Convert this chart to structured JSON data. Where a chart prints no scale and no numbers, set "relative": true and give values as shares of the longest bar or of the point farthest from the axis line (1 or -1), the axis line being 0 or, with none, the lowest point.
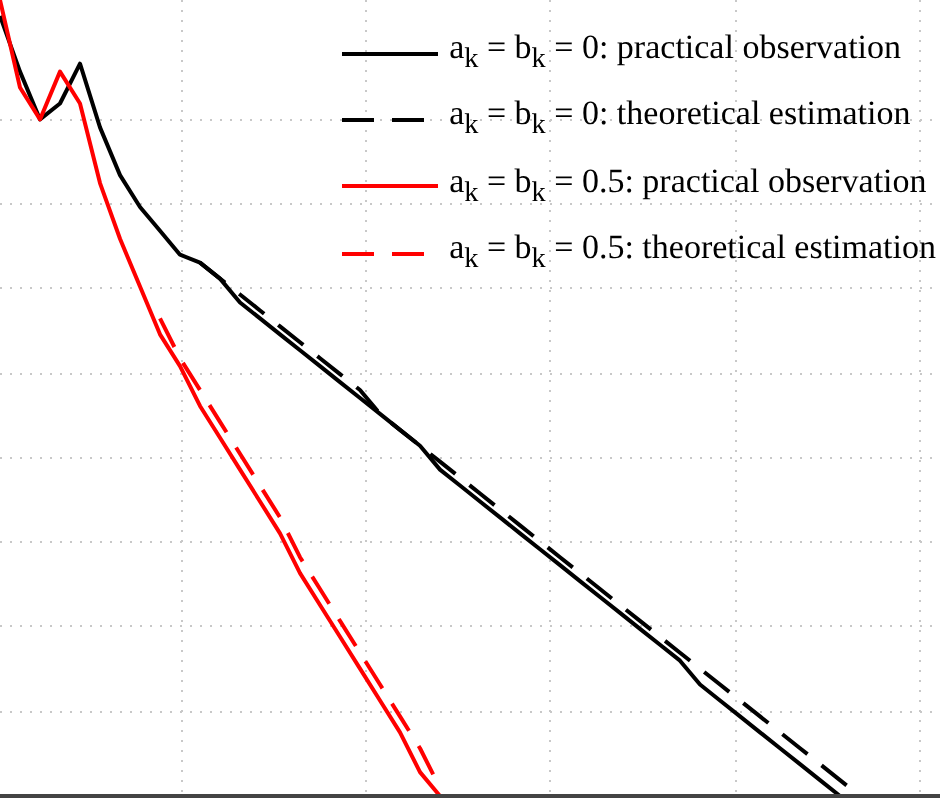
{
  "chart_data": {
    "type": "line",
    "relative": true,
    "grid": true,
    "legend": "top right",
    "marker": "none",
    "categories": [
      null,
      null,
      null,
      null,
      null,
      null,
      null,
      null,
      null,
      null,
      null,
      null,
      null,
      null,
      null,
      null,
      null,
      null,
      null,
      null,
      null,
      null,
      null,
      null,
      null,
      null,
      null,
      null,
      null,
      null,
      null,
      null,
      null,
      null,
      null,
      null,
      null,
      null,
      null,
      null,
      null,
      null,
      null,
      null,
      null,
      null,
      null,
      null
    ],
    "series": [
      {
        "name": "a$_{k}$ = b$_{k}$ = 0: practical observation",
        "color": "#000000",
        "line_style": "solid",
        "values": [
          0.98,
          0.91,
          0.85,
          0.87,
          0.92,
          0.84,
          0.78,
          0.74,
          0.71,
          0.68,
          0.67,
          0.65,
          0.62,
          0.6,
          0.58,
          0.56,
          0.54,
          0.52,
          0.5,
          0.48,
          0.46,
          0.44,
          0.41,
          0.39,
          0.37,
          0.35,
          0.33,
          0.31,
          0.29,
          0.27,
          0.25,
          0.23,
          0.21,
          0.19,
          0.17,
          0.14,
          0.12,
          0.1,
          0.08,
          0.06,
          0.04,
          0.02,
          0,
          null,
          null,
          null,
          null,
          null
        ]
      },
      {
        "name": "a$_{k}$ = b$_{k}$ = 0: theoretical estimation",
        "color": "#000000",
        "line_style": "dashed",
        "values": [
          null,
          null,
          null,
          null,
          null,
          null,
          null,
          null,
          null,
          null,
          0.67,
          0.65,
          0.63,
          0.61,
          0.59,
          0.57,
          0.55,
          0.53,
          0.51,
          0.48,
          0.46,
          0.44,
          0.42,
          0.4,
          0.38,
          0.36,
          0.34,
          0.32,
          0.3,
          0.28,
          0.26,
          0.24,
          0.22,
          0.2,
          0.18,
          0.16,
          0.14,
          0.12,
          0.1,
          0.08,
          0.06,
          0.04,
          0.02,
          0,
          null,
          null,
          null,
          null
        ]
      },
      {
        "name": "a$_{k}$ = b$_{k}$ = 0.5: practical observation",
        "color": "#ff0000",
        "line_style": "solid",
        "values": [
          1,
          0.89,
          0.85,
          0.91,
          0.87,
          0.77,
          0.7,
          0.64,
          0.58,
          0.54,
          0.49,
          0.45,
          0.41,
          0.37,
          0.33,
          0.28,
          0.24,
          0.2,
          0.16,
          0.12,
          0.08,
          0.03,
          0,
          null,
          null,
          null,
          null,
          null,
          null,
          null,
          null,
          null,
          null,
          null,
          null,
          null,
          null,
          null,
          null,
          null,
          null,
          null,
          null,
          null,
          null,
          null,
          null,
          null
        ]
      },
      {
        "name": "a$_{k}$ = b$_{k}$ = 0.5: theoretical estimation",
        "color": "#ff0000",
        "line_style": "dashed",
        "values": [
          null,
          null,
          null,
          null,
          null,
          null,
          null,
          null,
          0.6,
          0.55,
          0.51,
          0.47,
          0.43,
          0.39,
          0.35,
          0.3,
          0.26,
          0.22,
          0.18,
          0.14,
          0.1,
          0.06,
          0.01,
          null,
          null,
          null,
          null,
          null,
          null,
          null,
          null,
          null,
          null,
          null,
          null,
          null,
          null,
          null,
          null,
          null,
          null,
          null,
          null,
          null,
          null,
          null,
          null,
          null
        ]
      }
    ]
  }
}
